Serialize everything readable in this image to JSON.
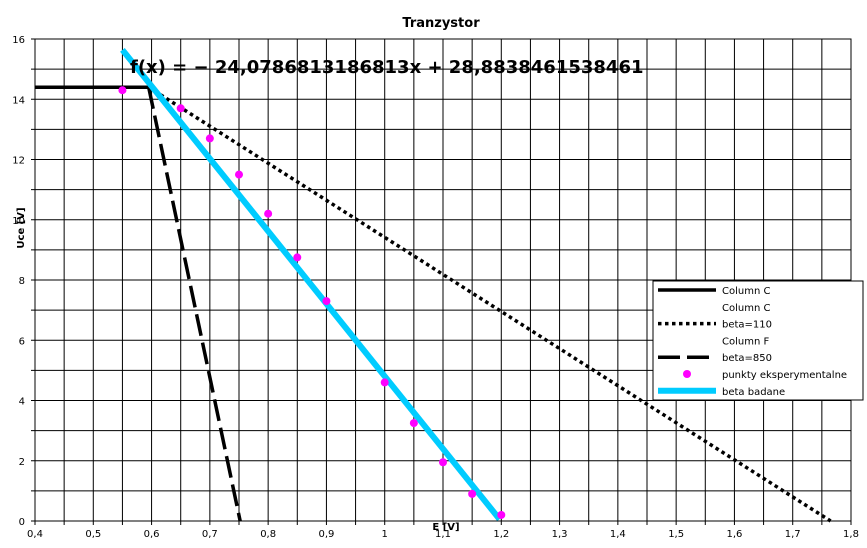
{
  "chart_data": {
    "type": "line",
    "title": "Tranzystor",
    "xlabel": "E [V]",
    "ylabel": "Uce [V]",
    "xlim": [
      0.4,
      1.8
    ],
    "ylim": [
      0,
      16
    ],
    "xticks": [
      "0,4",
      "0,5",
      "0,6",
      "0,7",
      "0,8",
      "0,9",
      "1",
      "1,1",
      "1,2",
      "1,3",
      "1,4",
      "1,5",
      "1,6",
      "1,7",
      "1,8"
    ],
    "yticks": [
      "0",
      "2",
      "4",
      "6",
      "8",
      "10",
      "12",
      "14",
      "16"
    ],
    "grid": true,
    "legend_position": "right",
    "annotation": "f(x) = − 24,0786813186813x + 28,8838461538461",
    "series": [
      {
        "name": "Column C",
        "style": "solid",
        "color": "#000000",
        "x": [
          0.4,
          0.595
        ],
        "y": [
          14.4,
          14.4
        ]
      },
      {
        "name": "Column C",
        "style": "none",
        "color": "#000000",
        "x": [],
        "y": []
      },
      {
        "name": "beta=110",
        "style": "dotted",
        "color": "#000000",
        "x": [
          0.595,
          1.765
        ],
        "y": [
          14.4,
          0
        ]
      },
      {
        "name": "Column F",
        "style": "none",
        "color": "#000000",
        "x": [],
        "y": []
      },
      {
        "name": "beta=850",
        "style": "dashed",
        "color": "#000000",
        "x": [
          0.595,
          0.752
        ],
        "y": [
          14.4,
          0
        ]
      },
      {
        "name": "punkty eksperymentalne",
        "style": "points",
        "color": "#ff00ff",
        "x": [
          0.55,
          0.65,
          0.7,
          0.75,
          0.8,
          0.85,
          0.9,
          1.0,
          1.05,
          1.1,
          1.15,
          1.2
        ],
        "y": [
          14.3,
          13.7,
          12.7,
          11.5,
          10.2,
          8.75,
          7.3,
          4.6,
          3.25,
          1.95,
          0.9,
          0.2
        ]
      },
      {
        "name": "beta badane",
        "style": "solid-thick",
        "color": "#00ccff",
        "x": [
          0.55,
          1.197
        ],
        "y": [
          15.64,
          0.06
        ]
      }
    ]
  }
}
